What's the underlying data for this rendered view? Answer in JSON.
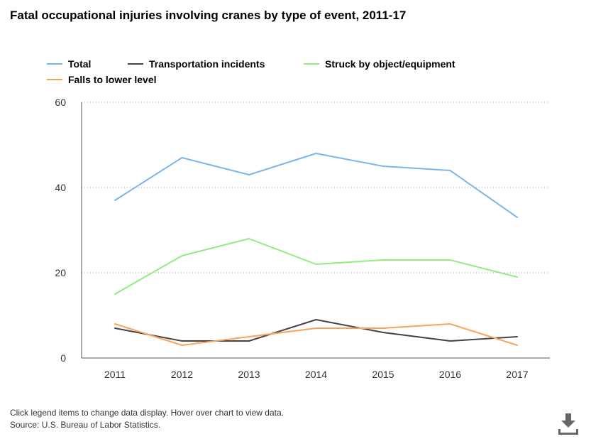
{
  "title": "Fatal occupational injuries involving cranes by type of event, 2011-17",
  "footer": {
    "note": "Click legend items to change data display. Hover over chart to view data.",
    "source": "Source: U.S. Bureau of Labor Statistics."
  },
  "colors": {
    "total": "#7cb5ec",
    "transportation": "#434348",
    "struck": "#90ed7d",
    "falls": "#f7a35c",
    "grid": "#999999",
    "axis": "#555555",
    "download": "#666666"
  },
  "icons": {
    "download": "download-icon"
  },
  "chart_data": {
    "type": "line",
    "title": "Fatal occupational injuries involving cranes by type of event, 2011-17",
    "xlabel": "",
    "ylabel": "",
    "categories": [
      "2011",
      "2012",
      "2013",
      "2014",
      "2015",
      "2016",
      "2017"
    ],
    "ylim": [
      0,
      60
    ],
    "yticks": [
      "0",
      "20",
      "40",
      "60"
    ],
    "grid": true,
    "legend_position": "top",
    "series": [
      {
        "key": "total",
        "name": "Total",
        "values": [
          37,
          47,
          43,
          48,
          45,
          44,
          33
        ]
      },
      {
        "key": "transportation",
        "name": "Transportation incidents",
        "values": [
          7,
          4,
          4,
          9,
          6,
          4,
          5
        ]
      },
      {
        "key": "struck",
        "name": "Struck by object/equipment",
        "values": [
          15,
          24,
          28,
          22,
          23,
          23,
          19
        ]
      },
      {
        "key": "falls",
        "name": "Falls to lower level",
        "values": [
          8,
          3,
          5,
          7,
          7,
          8,
          3
        ]
      }
    ]
  }
}
